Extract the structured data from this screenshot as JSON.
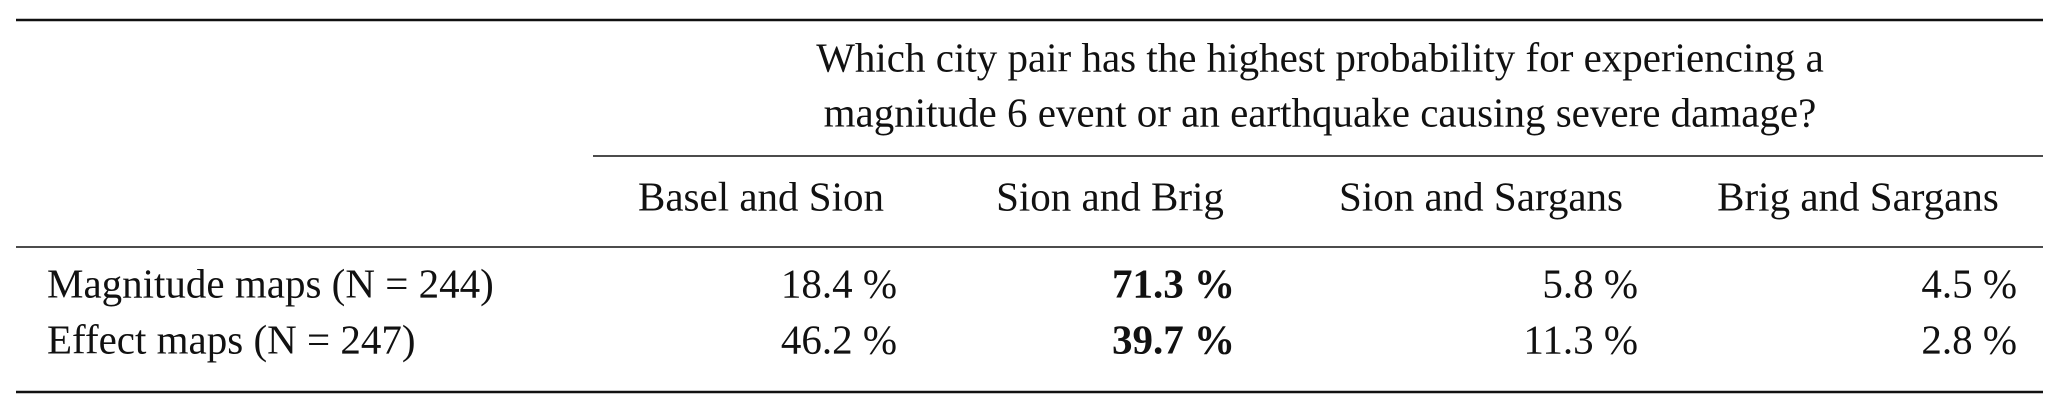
{
  "table": {
    "question": [
      "Which city pair has the highest probability for experiencing a",
      "magnitude 6 event or an earthquake causing severe damage?"
    ],
    "columns": [
      "Basel and Sion",
      "Sion and Brig",
      "Sion and Sargans",
      "Brig and Sargans"
    ],
    "rows": [
      {
        "label": "Magnitude maps (N = 244)",
        "cells": [
          "18.4 %",
          "71.3 %",
          "5.8 %",
          "4.5 %"
        ]
      },
      {
        "label": "Effect maps (N = 247)",
        "cells": [
          "46.2 %",
          "39.7 %",
          "11.3 %",
          "2.8 %"
        ]
      }
    ],
    "bold_column": 1
  }
}
